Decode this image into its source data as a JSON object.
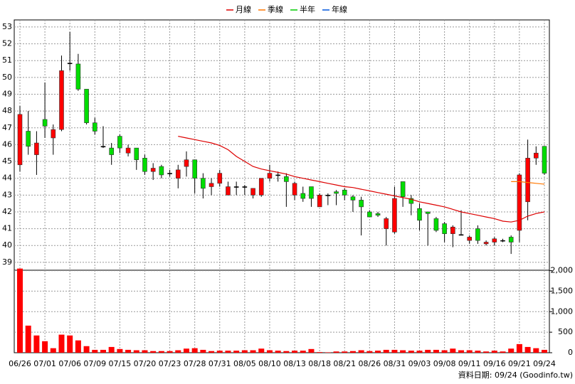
{
  "chart_data": {
    "type": "candlestick",
    "categories": [
      "06/26",
      null,
      null,
      "07/01",
      null,
      null,
      "07/06",
      null,
      null,
      "07/09",
      null,
      null,
      "07/15",
      null,
      null,
      "07/20",
      null,
      null,
      "07/23",
      null,
      null,
      "07/28",
      null,
      null,
      "07/31",
      null,
      null,
      "08/05",
      null,
      null,
      "08/10",
      null,
      null,
      "08/13",
      null,
      null,
      "08/18",
      null,
      null,
      "08/21",
      null,
      null,
      "08/26",
      null,
      null,
      "08/31",
      null,
      null,
      "09/03",
      null,
      null,
      "09/08",
      null,
      null,
      "09/11",
      null,
      null,
      "09/16",
      null,
      null,
      "09/21",
      null,
      null,
      "09/24"
    ],
    "open": [
      44.8,
      46.8,
      45.4,
      47.5,
      46.4,
      46.9,
      50.85,
      50.8,
      49.3,
      47.3,
      45.9,
      45.8,
      46.5,
      45.5,
      45.8,
      45.2,
      44.4,
      44.7,
      44.3,
      44.0,
      44.7,
      45.1,
      44.0,
      43.5,
      43.7,
      43.0,
      43.5,
      43.5,
      43.0,
      43.0,
      44.0,
      44.2,
      44.1,
      43.0,
      43.1,
      43.5,
      42.3,
      43.0,
      43.2,
      43.3,
      42.9,
      42.7,
      42.0,
      41.9,
      41.0,
      40.8,
      43.8,
      42.8,
      42.2,
      42.0,
      41.6,
      41.3,
      40.7,
      40.65,
      40.3,
      41.0,
      40.1,
      40.2,
      40.3,
      40.5,
      40.9,
      42.6,
      45.2,
      45.9
    ],
    "high": [
      48.3,
      48.0,
      46.8,
      49.7,
      47.2,
      51.3,
      52.7,
      51.4,
      49.3,
      47.6,
      47.1,
      46.1,
      46.6,
      46.0,
      45.8,
      45.4,
      44.9,
      44.8,
      44.5,
      44.8,
      45.6,
      45.1,
      44.3,
      44.0,
      44.5,
      43.8,
      43.8,
      43.6,
      43.4,
      44.0,
      44.8,
      44.4,
      44.3,
      43.8,
      43.5,
      43.5,
      43.1,
      43.1,
      43.3,
      43.4,
      43.0,
      42.9,
      42.1,
      42.0,
      41.7,
      43.5,
      43.8,
      43.0,
      42.5,
      42.0,
      41.7,
      41.4,
      41.2,
      42.1,
      40.6,
      41.2,
      40.3,
      40.5,
      40.4,
      40.6,
      44.3,
      46.3,
      45.9,
      45.9
    ],
    "low": [
      44.4,
      45.4,
      44.2,
      46.4,
      45.4,
      46.8,
      50.4,
      49.2,
      47.2,
      46.6,
      45.8,
      44.8,
      45.5,
      45.3,
      44.5,
      44.2,
      43.9,
      44.0,
      44.1,
      43.4,
      44.1,
      43.1,
      42.8,
      43.0,
      43.5,
      43.0,
      43.0,
      43.0,
      42.8,
      42.9,
      43.8,
      43.8,
      42.3,
      42.7,
      42.6,
      42.3,
      42.3,
      42.4,
      42.4,
      42.7,
      42.0,
      40.6,
      41.7,
      41.7,
      40.0,
      40.7,
      42.3,
      41.8,
      40.9,
      40.0,
      40.8,
      40.2,
      39.9,
      40.6,
      40.1,
      40.1,
      40.0,
      40.0,
      40.2,
      39.5,
      40.2,
      41.5,
      44.8,
      44.2
    ],
    "close": [
      47.8,
      45.9,
      46.1,
      47.1,
      46.9,
      50.4,
      50.85,
      49.3,
      47.3,
      46.8,
      45.9,
      45.4,
      45.8,
      45.8,
      45.1,
      44.4,
      44.6,
      44.2,
      44.3,
      44.5,
      45.1,
      44.0,
      43.4,
      43.7,
      44.3,
      43.5,
      43.5,
      43.5,
      43.4,
      44.0,
      44.3,
      44.2,
      43.8,
      43.7,
      42.8,
      42.8,
      43.0,
      43.0,
      43.1,
      43.0,
      42.7,
      42.3,
      41.7,
      41.8,
      41.6,
      42.8,
      42.9,
      42.5,
      41.5,
      41.9,
      40.9,
      40.7,
      41.1,
      40.65,
      40.5,
      40.3,
      40.2,
      40.4,
      40.3,
      40.2,
      44.2,
      45.2,
      45.5,
      44.3
    ],
    "up_color": "#ff0000",
    "down_color": "#00dd00",
    "flat_color": "#000000",
    "volume": {
      "color": "#ff0000",
      "values": [
        2050,
        660,
        420,
        280,
        110,
        440,
        420,
        300,
        160,
        70,
        70,
        140,
        90,
        70,
        60,
        60,
        40,
        40,
        40,
        60,
        100,
        110,
        70,
        40,
        50,
        50,
        50,
        60,
        60,
        100,
        60,
        50,
        40,
        50,
        50,
        90,
        15,
        10,
        30,
        30,
        40,
        60,
        40,
        50,
        70,
        70,
        60,
        50,
        50,
        70,
        70,
        60,
        100,
        60,
        60,
        50,
        30,
        50,
        30,
        100,
        210,
        140,
        110,
        70
      ]
    },
    "series": [
      {
        "name": "月線",
        "color": "#dd0000",
        "values": [
          null,
          null,
          null,
          null,
          null,
          null,
          null,
          null,
          null,
          null,
          null,
          null,
          null,
          null,
          null,
          null,
          null,
          null,
          null,
          46.5,
          46.4,
          46.3,
          46.2,
          46.1,
          45.95,
          45.7,
          45.3,
          45.0,
          44.7,
          44.55,
          44.45,
          44.35,
          44.25,
          44.1,
          44.0,
          43.9,
          43.8,
          43.7,
          43.6,
          43.5,
          43.45,
          43.35,
          43.25,
          43.15,
          43.05,
          42.95,
          42.85,
          42.75,
          42.6,
          42.5,
          42.4,
          42.3,
          42.15,
          42.0,
          41.9,
          41.8,
          41.7,
          41.6,
          41.45,
          41.4,
          41.5,
          41.75,
          41.9,
          42.0
        ]
      },
      {
        "name": "季線",
        "color": "#ff7700",
        "values": [
          null,
          null,
          null,
          null,
          null,
          null,
          null,
          null,
          null,
          null,
          null,
          null,
          null,
          null,
          null,
          null,
          null,
          null,
          null,
          null,
          null,
          null,
          null,
          null,
          null,
          null,
          null,
          null,
          null,
          null,
          null,
          null,
          null,
          null,
          null,
          null,
          null,
          null,
          null,
          null,
          null,
          null,
          null,
          null,
          null,
          null,
          null,
          null,
          null,
          null,
          null,
          null,
          null,
          null,
          null,
          null,
          null,
          null,
          null,
          43.8,
          43.8,
          43.75,
          43.7,
          43.65
        ]
      },
      {
        "name": "半年",
        "color": "#00cc00",
        "values": [
          null,
          null,
          null,
          null,
          null,
          null,
          null,
          null,
          null,
          null,
          null,
          null,
          null,
          null,
          null,
          null,
          null,
          null,
          null,
          null,
          null,
          null,
          null,
          null,
          null,
          null,
          null,
          null,
          null,
          null,
          null,
          null,
          null,
          null,
          null,
          null,
          null,
          null,
          null,
          null,
          null,
          null,
          null,
          null,
          null,
          null,
          null,
          null,
          null,
          null,
          null,
          null,
          null,
          null,
          null,
          null,
          null,
          null,
          null,
          null,
          null,
          null,
          null,
          null
        ]
      },
      {
        "name": "年線",
        "color": "#0055dd",
        "values": [
          null,
          null,
          null,
          null,
          null,
          null,
          null,
          null,
          null,
          null,
          null,
          null,
          null,
          null,
          null,
          null,
          null,
          null,
          null,
          null,
          null,
          null,
          null,
          null,
          null,
          null,
          null,
          null,
          null,
          null,
          null,
          null,
          null,
          null,
          null,
          null,
          null,
          null,
          null,
          null,
          null,
          null,
          null,
          null,
          null,
          null,
          null,
          null,
          null,
          null,
          null,
          null,
          null,
          null,
          null,
          null,
          null,
          null,
          null,
          null,
          null,
          null,
          null,
          null
        ]
      }
    ],
    "ylim": [
      38.53,
      53.42
    ],
    "yticks": [
      39,
      40,
      41,
      42,
      43,
      44,
      45,
      46,
      47,
      48,
      49,
      50,
      51,
      52,
      53
    ],
    "y2lim": [
      0,
      2010
    ],
    "y2ticks": [
      0,
      500,
      {
        "value": 1000,
        "label": "1,000"
      },
      {
        "value": 1500,
        "label": "1,500"
      },
      {
        "value": 2000,
        "label": "2,000"
      }
    ],
    "grid": true,
    "footer": "資料日期: 09/24  (Goodinfo.tw)"
  }
}
